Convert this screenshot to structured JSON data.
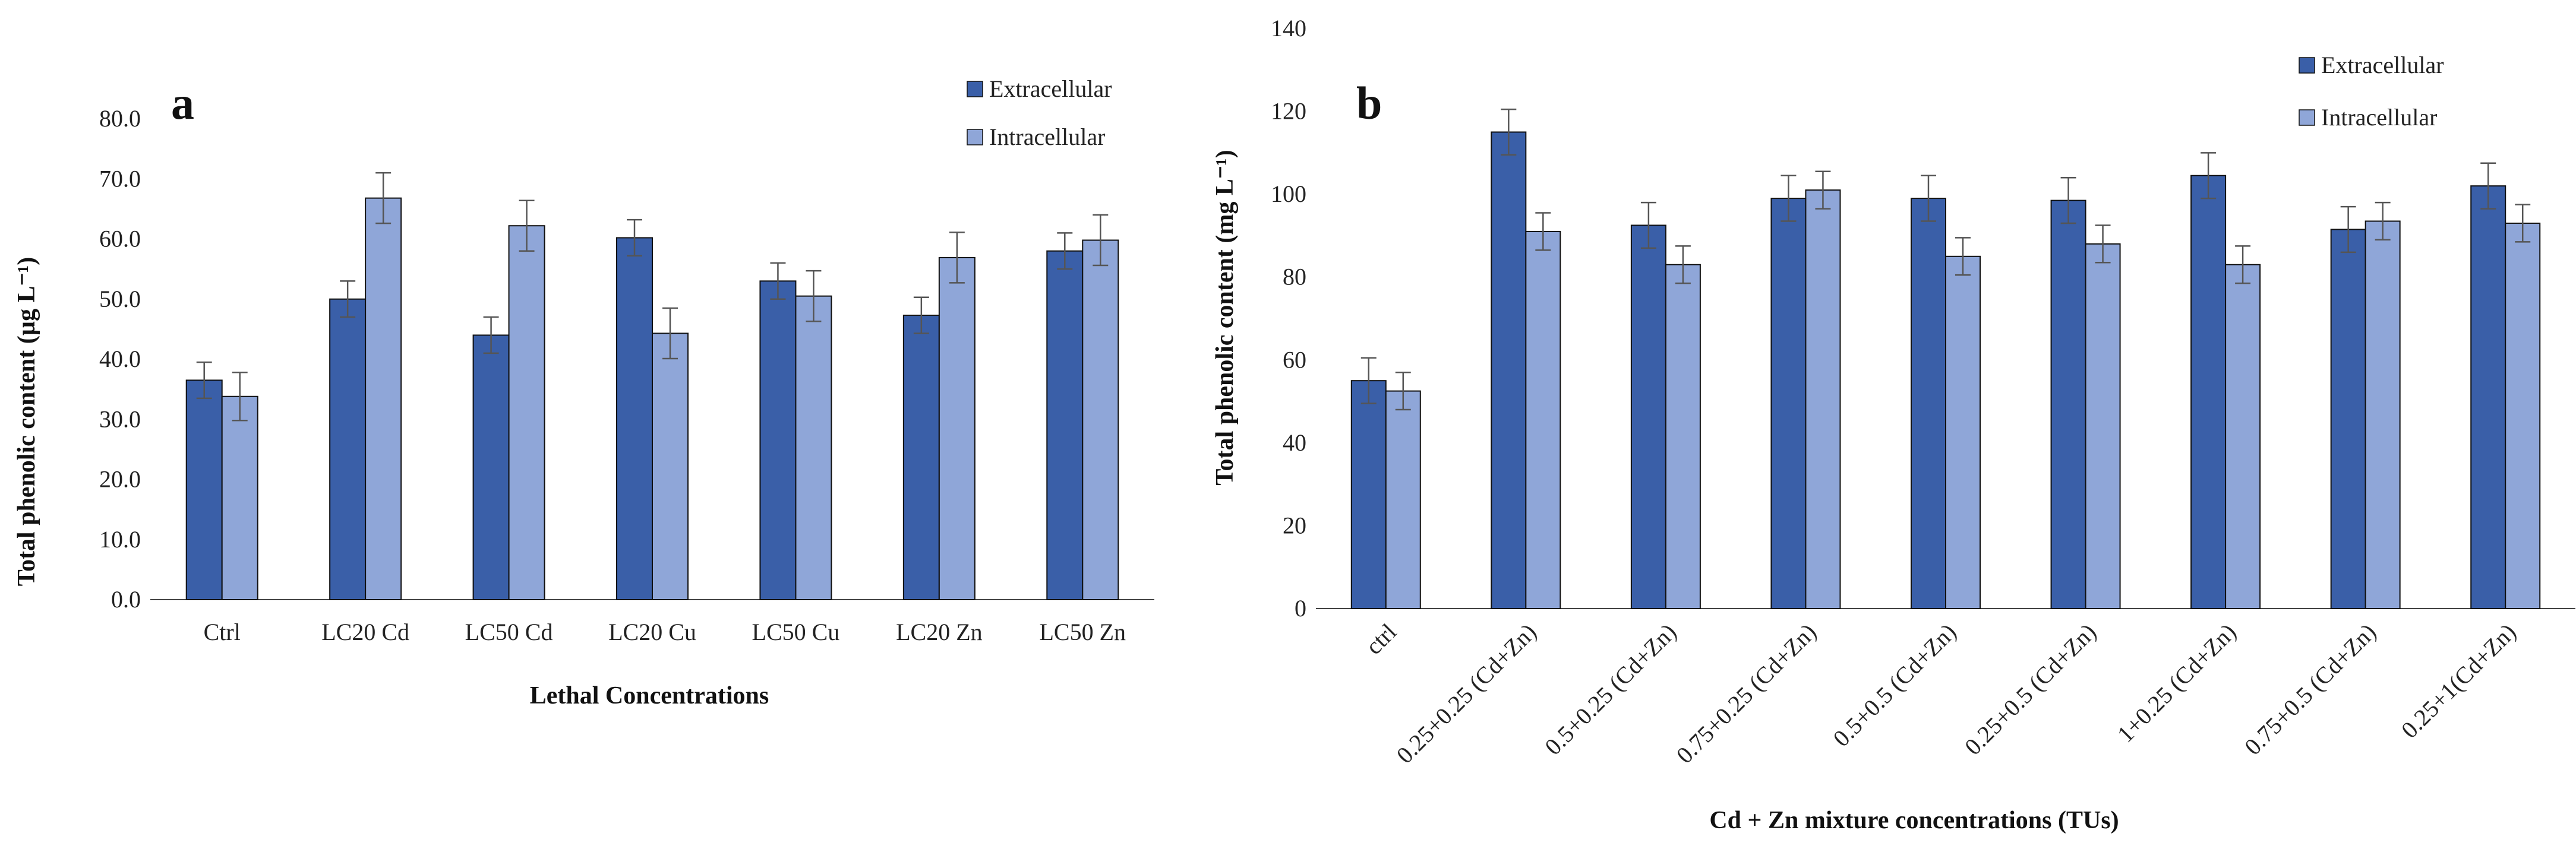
{
  "colors": {
    "extracellular": "#3A5FA8",
    "intracellular": "#8FA6D8",
    "bar_edge": "#111111",
    "axis": "#444444",
    "error_bar": "#555555"
  },
  "chart_data": [
    {
      "type": "bar",
      "panel_label": "a",
      "title": "",
      "xlabel": "Lethal Concentrations",
      "ylabel": "Total phenolic content (µg L⁻¹)",
      "ylim": [
        0,
        80
      ],
      "ytick_step": 10,
      "ytick_labels": [
        "0.0",
        "10.0",
        "20.0",
        "30.0",
        "40.0",
        "50.0",
        "60.0",
        "70.0",
        "80.0"
      ],
      "legend_position": "top-right",
      "categories": [
        "Ctrl",
        "LC20 Cd",
        "LC50 Cd",
        "LC20 Cu",
        "LC50 Cu",
        "LC20 Zn",
        "LC50 Zn"
      ],
      "series": [
        {
          "name": "Extracellular",
          "values": [
            36.5,
            50.0,
            44.0,
            60.2,
            53.0,
            47.3,
            58.0
          ],
          "errors": [
            3.0,
            3.0,
            3.0,
            3.0,
            3.0,
            3.0,
            3.0
          ]
        },
        {
          "name": "Intracellular",
          "values": [
            33.8,
            66.8,
            62.2,
            44.3,
            50.5,
            56.9,
            59.8
          ],
          "errors": [
            4.0,
            4.2,
            4.2,
            4.2,
            4.2,
            4.2,
            4.2
          ]
        }
      ]
    },
    {
      "type": "bar",
      "panel_label": "b",
      "title": "",
      "xlabel": "Cd + Zn mixture concentrations (TUs)",
      "ylabel": "Total phenolic content (mg L⁻¹)",
      "ylim": [
        0,
        140
      ],
      "ytick_step": 20,
      "ytick_labels": [
        "0",
        "20",
        "40",
        "60",
        "80",
        "100",
        "120",
        "140"
      ],
      "legend_position": "top-right",
      "categories": [
        "ctrl",
        "0.25+0.25 (Cd+Zn)",
        "0.5+0.25 (Cd+Zn)",
        "0.75+0.25 (Cd+Zn)",
        "0.5+0.5 (Cd+Zn)",
        "0.25+0.5 (Cd+Zn)",
        "1+0.25 (Cd+Zn)",
        "0.75+0.5 (Cd+Zn)",
        "0.25+1(Cd+Zn)"
      ],
      "series": [
        {
          "name": "Extracellular",
          "values": [
            55.0,
            115.0,
            92.5,
            99.0,
            99.0,
            98.5,
            104.5,
            91.5,
            102.0
          ],
          "errors": [
            5.5,
            5.5,
            5.5,
            5.5,
            5.5,
            5.5,
            5.5,
            5.5,
            5.5
          ]
        },
        {
          "name": "Intracellular",
          "values": [
            52.5,
            91.0,
            83.0,
            101.0,
            85.0,
            88.0,
            83.0,
            93.5,
            93.0
          ],
          "errors": [
            4.5,
            4.5,
            4.5,
            4.5,
            4.5,
            4.5,
            4.5,
            4.5,
            4.5
          ]
        }
      ]
    }
  ]
}
